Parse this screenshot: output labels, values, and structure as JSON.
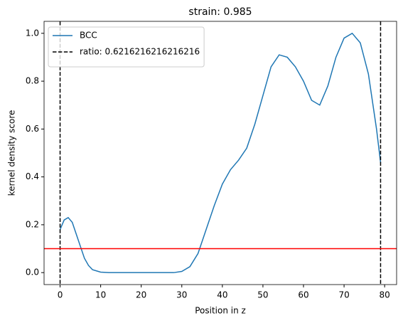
{
  "chart_data": {
    "type": "line",
    "title": "strain: 0.985",
    "x_label": "Position in z",
    "y_label": "kernel density score",
    "xlim": [
      -3.95,
      82.95
    ],
    "ylim": [
      -0.05,
      1.05
    ],
    "xticks": [
      0,
      10,
      20,
      30,
      40,
      50,
      60,
      70,
      80
    ],
    "yticks": [
      {
        "value": 0,
        "label": "0.0"
      },
      {
        "value": 0.2,
        "label": "0.2"
      },
      {
        "value": 0.4,
        "label": "0.4"
      },
      {
        "value": 0.6,
        "label": "0.6"
      },
      {
        "value": 0.8,
        "label": "0.8"
      },
      {
        "value": 1,
        "label": "1.0"
      }
    ],
    "legend": "upper left",
    "series": [
      {
        "name": "BCC",
        "color": "#1f77b4",
        "x": [
          0,
          1,
          2,
          3,
          4,
          5,
          6,
          7,
          8,
          10,
          12,
          14,
          16,
          18,
          20,
          22,
          24,
          26,
          28,
          30,
          32,
          34,
          36,
          38,
          40,
          42,
          44,
          46,
          48,
          50,
          52,
          54,
          56,
          58,
          60,
          62,
          64,
          66,
          68,
          70,
          72,
          74,
          76,
          78,
          79
        ],
        "values": [
          0.18,
          0.22,
          0.23,
          0.21,
          0.16,
          0.11,
          0.06,
          0.03,
          0.012,
          0.002,
          0,
          0,
          0,
          0,
          0,
          0,
          0,
          0,
          0,
          0.005,
          0.025,
          0.08,
          0.18,
          0.28,
          0.37,
          0.43,
          0.47,
          0.52,
          0.62,
          0.74,
          0.86,
          0.91,
          0.9,
          0.86,
          0.8,
          0.72,
          0.7,
          0.78,
          0.9,
          0.98,
          1.0,
          0.96,
          0.83,
          0.6,
          0.46
        ]
      }
    ],
    "vlines": {
      "name": "ratio: 0.6216216216216216",
      "color": "#000000",
      "values": [
        0,
        79
      ]
    },
    "hline": {
      "value": 0.1,
      "color": "#ff0000"
    }
  }
}
